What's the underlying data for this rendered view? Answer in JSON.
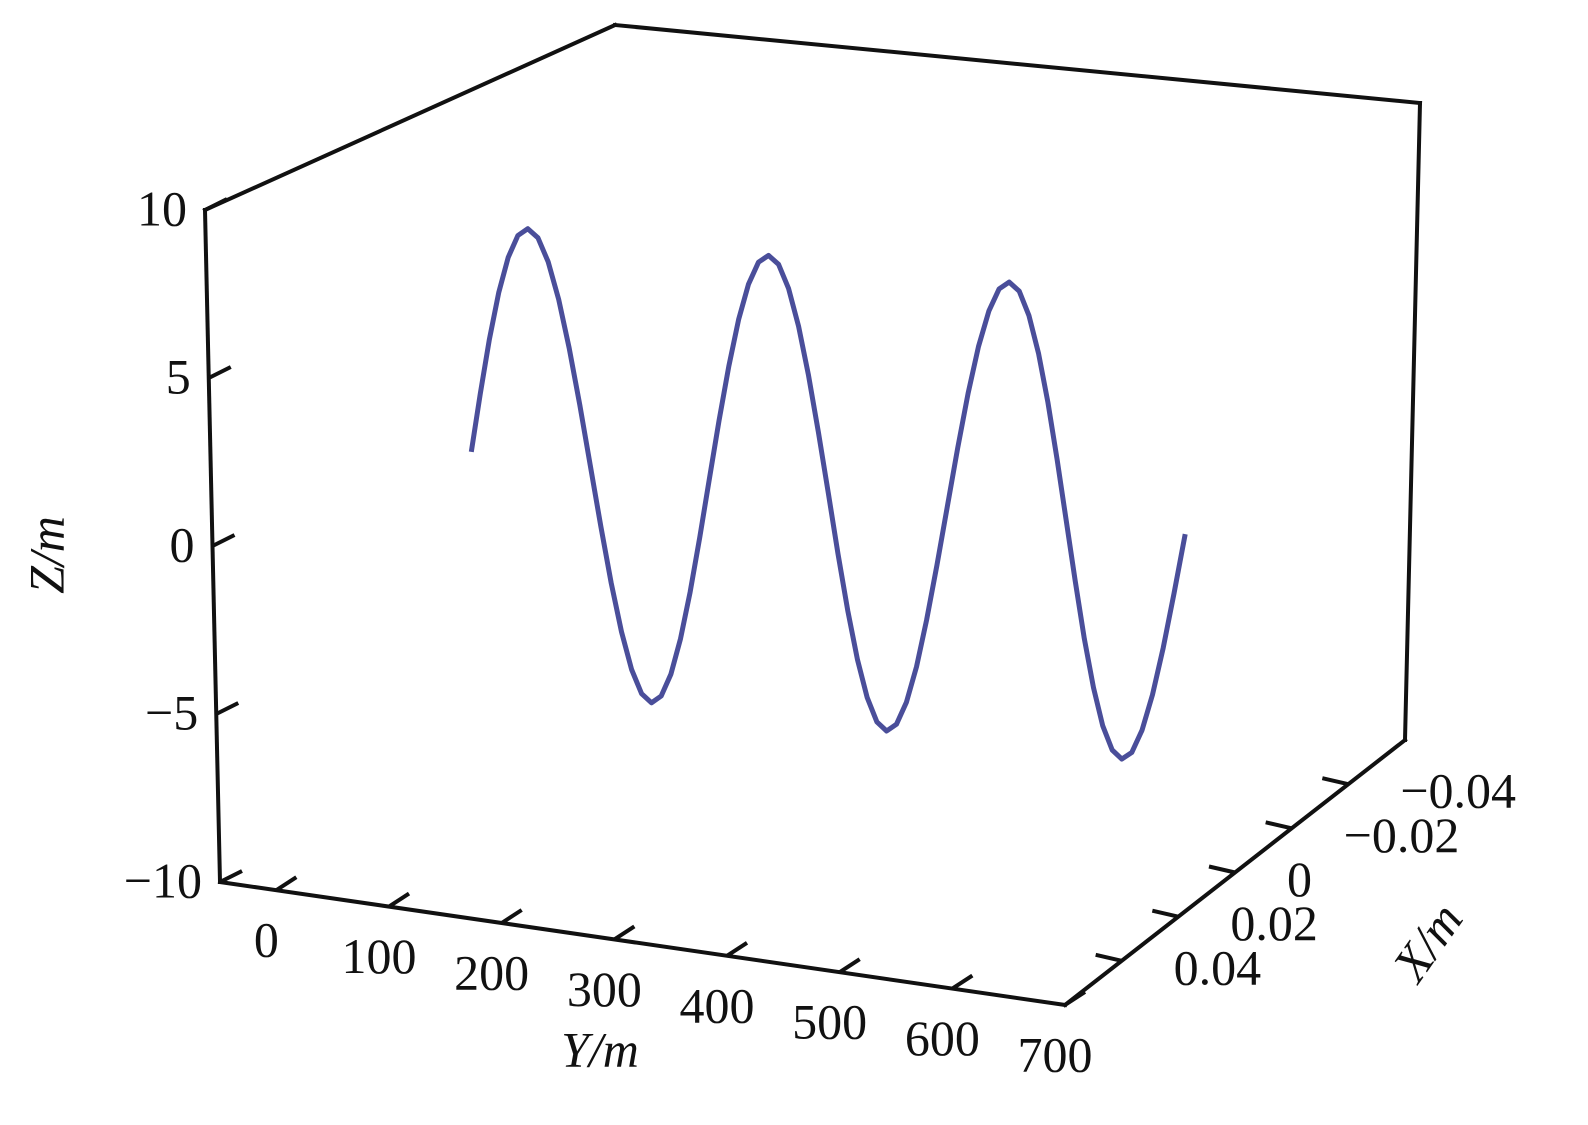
{
  "chart_data": {
    "type": "line3d",
    "xlabel": "X/m",
    "ylabel": "Y/m",
    "zlabel": "Z/m",
    "xlim": [
      -0.06,
      0.06
    ],
    "xticks": [
      {
        "value": -0.04,
        "label": "−0.04"
      },
      {
        "value": -0.02,
        "label": "−0.02"
      },
      0,
      0.02,
      0.04
    ],
    "ylim": [
      -50,
      700
    ],
    "yticks": [
      0,
      100,
      200,
      300,
      400,
      500,
      600,
      700
    ],
    "zlim": [
      -10,
      10
    ],
    "zticks": [
      {
        "value": -10,
        "label": "−10"
      },
      {
        "value": -5,
        "label": "−5"
      },
      0,
      5,
      10
    ],
    "series": [
      {
        "color": "#4a4e9a",
        "x": [
          0,
          0,
          0,
          0,
          0,
          0,
          0,
          0,
          0,
          0,
          0,
          0,
          0,
          0,
          0,
          0,
          0,
          0,
          0,
          0,
          0,
          0,
          0,
          0,
          0,
          0,
          0,
          0,
          0,
          0,
          0,
          0,
          0,
          0,
          0,
          0,
          0,
          0,
          0,
          0,
          0,
          0,
          0,
          0,
          0,
          0,
          0,
          0,
          0,
          0,
          0,
          0,
          0,
          0,
          0,
          0,
          0,
          0,
          0,
          0,
          0,
          0,
          0,
          0,
          0,
          0,
          0,
          0,
          0,
          0,
          0,
          0,
          0
        ],
        "y": [
          0,
          9,
          18,
          27,
          36,
          45,
          54,
          63,
          72,
          81,
          90,
          99,
          108,
          117,
          126,
          135,
          144,
          153,
          162,
          171,
          180,
          189,
          198,
          207,
          216,
          225,
          234,
          243,
          252,
          261,
          270,
          279,
          288,
          297,
          306,
          315,
          324,
          333,
          342,
          351,
          360,
          369,
          378,
          387,
          396,
          405,
          414,
          423,
          432,
          441,
          450,
          459,
          468,
          477,
          486,
          495,
          504,
          513,
          522,
          531,
          540,
          549,
          558,
          567,
          576,
          585,
          594,
          603,
          612,
          621,
          630,
          639,
          648
        ],
        "z": [
          0,
          1.81,
          3.5,
          4.95,
          6.06,
          6.76,
          7,
          6.76,
          6.06,
          4.95,
          3.5,
          1.81,
          0,
          -1.81,
          -3.5,
          -4.95,
          -6.06,
          -6.76,
          -7,
          -6.76,
          -6.06,
          -4.95,
          -3.5,
          -1.81,
          0,
          1.81,
          3.5,
          4.95,
          6.06,
          6.76,
          7,
          6.76,
          6.06,
          4.95,
          3.5,
          1.81,
          0,
          -1.81,
          -3.5,
          -4.95,
          -6.06,
          -6.76,
          -7,
          -6.76,
          -6.06,
          -4.95,
          -3.5,
          -1.81,
          0,
          1.81,
          3.5,
          4.95,
          6.06,
          6.76,
          7,
          6.76,
          6.06,
          4.95,
          3.5,
          1.81,
          0,
          -1.81,
          -3.5,
          -4.95,
          -6.06,
          -6.76,
          -7,
          -6.76,
          -6.06,
          -4.95,
          -3.5,
          -1.81,
          0
        ]
      }
    ]
  }
}
